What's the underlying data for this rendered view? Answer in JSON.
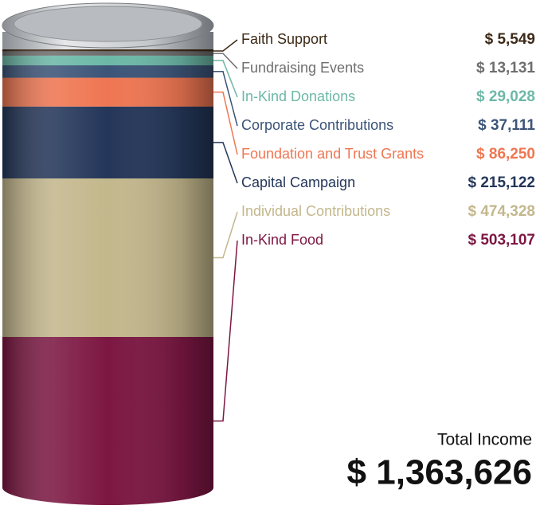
{
  "chart_data": {
    "type": "stack",
    "categories": [
      "Faith Support",
      "Fundraising Events",
      "In-Kind Donations",
      "Corporate Contributions",
      "Foundation and Trust Grants",
      "Capital Campaign",
      "Individual Contributions",
      "In-Kind Food"
    ],
    "values": [
      5549,
      13131,
      29028,
      37111,
      86250,
      215122,
      474328,
      503107
    ],
    "value_labels": [
      "$ 5,549",
      "$ 13,131",
      "$ 29,028",
      "$ 37,111",
      "$ 86,250",
      "$ 215,122",
      "$ 474,328",
      "$ 503,107"
    ],
    "colors": [
      "#3d2a17",
      "#6e6e6e",
      "#6cb8a7",
      "#3c5478",
      "#ef7652",
      "#243659",
      "#c3b78c",
      "#7c1742"
    ],
    "total": {
      "label": "Total Income",
      "value": 1363626,
      "value_label": "$ 1,363,626"
    }
  }
}
